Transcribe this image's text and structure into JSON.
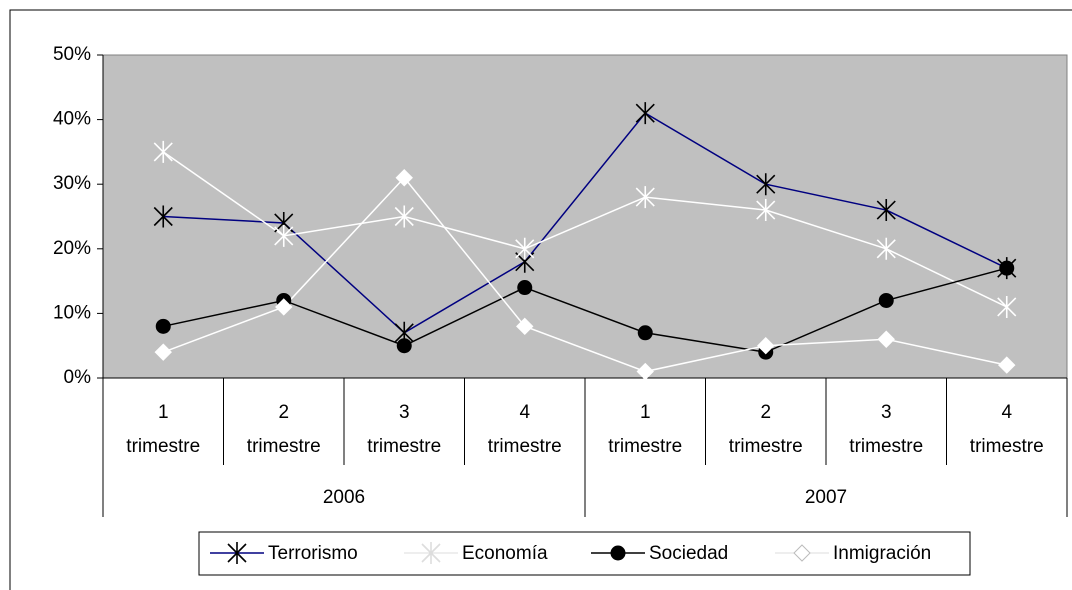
{
  "chart_data": {
    "type": "line",
    "categories": [
      "1 trimestre",
      "2 trimestre",
      "3 trimestre",
      "4 trimestre",
      "1 trimestre",
      "2 trimestre",
      "3 trimestre",
      "4 trimestre"
    ],
    "category_groups": [
      "2006",
      "2007"
    ],
    "series": [
      {
        "name": "Terrorismo",
        "color": "#000080",
        "marker": "asterisk",
        "marker_color": "#000000",
        "values": [
          25,
          24,
          7,
          18,
          41,
          30,
          26,
          17
        ]
      },
      {
        "name": "Economía",
        "color": "#ffffff",
        "marker": "asterisk",
        "marker_color": "#ffffff",
        "values": [
          35,
          22,
          25,
          20,
          28,
          26,
          20,
          11
        ]
      },
      {
        "name": "Sociedad",
        "color": "#000000",
        "marker": "circle",
        "marker_color": "#000000",
        "values": [
          8,
          12,
          5,
          14,
          7,
          4,
          12,
          17
        ]
      },
      {
        "name": "Inmigración",
        "color": "#ffffff",
        "marker": "diamond",
        "marker_color": "#ffffff",
        "values": [
          4,
          11,
          31,
          8,
          1,
          5,
          6,
          2
        ]
      }
    ],
    "ylim": [
      0,
      50
    ],
    "yticks": [
      {
        "value": 0,
        "label": "0%"
      },
      {
        "value": 10,
        "label": "10%"
      },
      {
        "value": 20,
        "label": "20%"
      },
      {
        "value": 30,
        "label": "30%"
      },
      {
        "value": 40,
        "label": "40%"
      },
      {
        "value": 50,
        "label": "50%"
      }
    ],
    "legend": "bottom",
    "plot_background": "#c0c0c0"
  }
}
